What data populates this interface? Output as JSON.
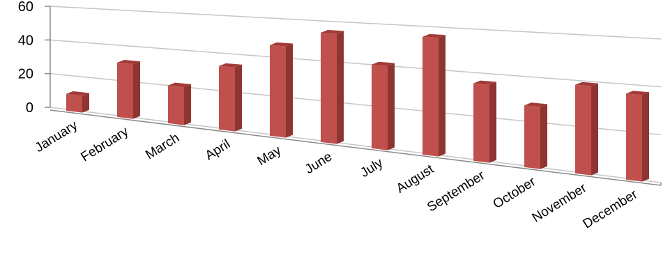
{
  "chart_data": {
    "type": "bar",
    "title": "",
    "xlabel": "",
    "ylabel": "",
    "ylim": [
      0,
      60
    ],
    "yticks": [
      0,
      20,
      40,
      60
    ],
    "grid": true,
    "legend": "none",
    "style": "3d-column",
    "categories": [
      "January",
      "February",
      "March",
      "April",
      "May",
      "June",
      "July",
      "August",
      "September",
      "October",
      "November",
      "December"
    ],
    "series": [
      {
        "values": [
          9,
          30,
          20,
          33,
          46,
          54,
          40,
          55,
          35,
          27,
          38,
          36
        ]
      }
    ],
    "colors": {
      "front": "#c0504d",
      "side": "#8e3532",
      "top": "#a23b38",
      "grid": "#c6c6c6",
      "axis": "#8a8a8a"
    }
  }
}
